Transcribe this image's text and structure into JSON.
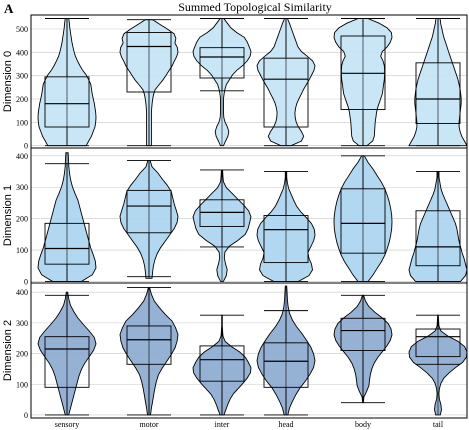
{
  "panel_label": "A",
  "chart_data": {
    "type": "violin",
    "title": "Summed Topological Similarity",
    "categories": [
      "sensory",
      "motor",
      "inter",
      "head",
      "body",
      "tail"
    ],
    "grid": true,
    "panels": [
      {
        "ylabel": "Dimension 0",
        "ylim": [
          -10,
          560
        ],
        "yticks": [
          0,
          100,
          200,
          300,
          400,
          500
        ],
        "color": "#c3e3f6",
        "stats": [
          {
            "min": 0,
            "q1": 80,
            "median": 180,
            "q3": 295,
            "max": 545,
            "whisker_low": 0,
            "whisker_high": 545
          },
          {
            "min": 0,
            "q1": 230,
            "median": 425,
            "q3": 485,
            "max": 540,
            "whisker_low": 0,
            "whisker_high": 540
          },
          {
            "min": 0,
            "q1": 290,
            "median": 380,
            "q3": 420,
            "max": 545,
            "whisker_low": 235,
            "whisker_high": 545
          },
          {
            "min": 0,
            "q1": 80,
            "median": 285,
            "q3": 375,
            "max": 545,
            "whisker_low": 0,
            "whisker_high": 545
          },
          {
            "min": 0,
            "q1": 155,
            "median": 310,
            "q3": 470,
            "max": 545,
            "whisker_low": 0,
            "whisker_high": 545
          },
          {
            "min": 0,
            "q1": 95,
            "median": 200,
            "q3": 355,
            "max": 545,
            "whisker_low": 0,
            "whisker_high": 545
          }
        ],
        "density": [
          [
            0.55,
            0.62,
            0.7,
            0.75,
            0.8,
            0.82,
            0.83,
            0.82,
            0.8,
            0.78,
            0.75,
            0.72,
            0.7,
            0.68,
            0.62,
            0.55,
            0.45,
            0.37,
            0.3,
            0.24,
            0.2,
            0.17,
            0.14,
            0.12,
            0.1,
            0.08,
            0.07,
            0.05
          ],
          [
            0.08,
            0.08,
            0.08,
            0.08,
            0.08,
            0.08,
            0.08,
            0.08,
            0.09,
            0.1,
            0.12,
            0.15,
            0.2,
            0.32,
            0.45,
            0.55,
            0.65,
            0.75,
            0.82,
            0.9,
            0.95,
            0.93,
            0.85,
            0.88,
            0.82,
            0.6,
            0.35,
            0.12
          ],
          [
            0.05,
            0.12,
            0.2,
            0.23,
            0.18,
            0.1,
            0.06,
            0.05,
            0.05,
            0.05,
            0.05,
            0.07,
            0.1,
            0.15,
            0.25,
            0.35,
            0.5,
            0.7,
            0.85,
            0.95,
            0.98,
            0.92,
            0.85,
            0.75,
            0.5,
            0.3,
            0.18,
            0.06
          ],
          [
            0.15,
            0.45,
            0.52,
            0.45,
            0.36,
            0.3,
            0.27,
            0.26,
            0.28,
            0.32,
            0.38,
            0.45,
            0.52,
            0.6,
            0.68,
            0.75,
            0.82,
            0.85,
            0.78,
            0.62,
            0.45,
            0.35,
            0.3,
            0.25,
            0.2,
            0.15,
            0.1,
            0.04
          ],
          [
            0.12,
            0.3,
            0.35,
            0.36,
            0.37,
            0.38,
            0.4,
            0.42,
            0.45,
            0.5,
            0.55,
            0.6,
            0.62,
            0.64,
            0.66,
            0.67,
            0.67,
            0.66,
            0.62,
            0.55,
            0.6,
            0.75,
            0.85,
            0.9,
            0.88,
            0.75,
            0.5,
            0.15
          ],
          [
            0.55,
            0.5,
            0.45,
            0.42,
            0.4,
            0.4,
            0.41,
            0.42,
            0.43,
            0.44,
            0.44,
            0.43,
            0.42,
            0.4,
            0.38,
            0.35,
            0.32,
            0.29,
            0.26,
            0.23,
            0.2,
            0.17,
            0.14,
            0.11,
            0.09,
            0.07,
            0.05,
            0.04
          ]
        ]
      },
      {
        "ylabel": "Dimension 1",
        "ylim": [
          -5,
          425
        ],
        "yticks": [
          0,
          100,
          200,
          300,
          400
        ],
        "color": "#a9d3f0",
        "stats": [
          {
            "min": 0,
            "q1": 55,
            "median": 105,
            "q3": 185,
            "max": 410,
            "whisker_low": 0,
            "whisker_high": 375
          },
          {
            "min": 10,
            "q1": 155,
            "median": 240,
            "q3": 290,
            "max": 385,
            "whisker_low": 15,
            "whisker_high": 385
          },
          {
            "min": 0,
            "q1": 175,
            "median": 220,
            "q3": 260,
            "max": 355,
            "whisker_low": 110,
            "whisker_high": 355
          },
          {
            "min": 0,
            "q1": 60,
            "median": 165,
            "q3": 210,
            "max": 350,
            "whisker_low": 0,
            "whisker_high": 350
          },
          {
            "min": 0,
            "q1": 90,
            "median": 185,
            "q3": 295,
            "max": 400,
            "whisker_low": 0,
            "whisker_high": 400
          },
          {
            "min": 0,
            "q1": 50,
            "median": 110,
            "q3": 225,
            "max": 350,
            "whisker_low": 0,
            "whisker_high": 350
          }
        ],
        "density": [
          [
            0.4,
            0.7,
            0.8,
            0.78,
            0.72,
            0.65,
            0.6,
            0.55,
            0.5,
            0.45,
            0.4,
            0.35,
            0.3,
            0.22,
            0.15,
            0.1,
            0.07,
            0.05,
            0.04,
            0.03
          ],
          [
            0.1,
            0.12,
            0.15,
            0.2,
            0.28,
            0.4,
            0.55,
            0.7,
            0.85,
            0.95,
            0.98,
            0.92,
            0.85,
            0.8,
            0.75,
            0.62,
            0.45,
            0.3,
            0.1,
            0.04
          ],
          [
            0.05,
            0.15,
            0.18,
            0.12,
            0.08,
            0.1,
            0.25,
            0.55,
            0.8,
            0.9,
            0.95,
            1.0,
            0.92,
            0.75,
            0.55,
            0.35,
            0.15,
            0.05,
            0.03,
            0.02
          ],
          [
            0.35,
            0.65,
            0.75,
            0.72,
            0.65,
            0.62,
            0.7,
            0.78,
            0.82,
            0.8,
            0.72,
            0.58,
            0.42,
            0.3,
            0.22,
            0.15,
            0.08,
            0.04,
            0.02,
            0.02
          ],
          [
            0.15,
            0.3,
            0.42,
            0.55,
            0.65,
            0.72,
            0.78,
            0.82,
            0.85,
            0.86,
            0.85,
            0.82,
            0.78,
            0.72,
            0.65,
            0.55,
            0.42,
            0.3,
            0.15,
            0.04
          ],
          [
            0.45,
            0.55,
            0.58,
            0.55,
            0.52,
            0.48,
            0.45,
            0.42,
            0.4,
            0.38,
            0.35,
            0.3,
            0.25,
            0.2,
            0.15,
            0.1,
            0.06,
            0.04,
            0.02,
            0.02
          ]
        ]
      },
      {
        "ylabel": "Dimension 2",
        "ylim": [
          -10,
          430
        ],
        "yticks": [
          0,
          100,
          200,
          300,
          400
        ],
        "color": "#8aa9cf",
        "stats": [
          {
            "min": 0,
            "q1": 90,
            "median": 215,
            "q3": 255,
            "max": 400,
            "whisker_low": 0,
            "whisker_high": 390
          },
          {
            "min": 0,
            "q1": 165,
            "median": 245,
            "q3": 290,
            "max": 415,
            "whisker_low": 0,
            "whisker_high": 415
          },
          {
            "min": 0,
            "q1": 110,
            "median": 180,
            "q3": 225,
            "max": 325,
            "whisker_low": 0,
            "whisker_high": 325
          },
          {
            "min": 0,
            "q1": 90,
            "median": 175,
            "q3": 235,
            "max": 420,
            "whisker_low": 0,
            "whisker_high": 340
          },
          {
            "min": 40,
            "q1": 210,
            "median": 275,
            "q3": 315,
            "max": 390,
            "whisker_low": 40,
            "whisker_high": 390
          },
          {
            "min": 0,
            "q1": 190,
            "median": 255,
            "q3": 280,
            "max": 325,
            "whisker_low": 165,
            "whisker_high": 325
          }
        ],
        "density": [
          [
            0.05,
            0.1,
            0.15,
            0.2,
            0.25,
            0.3,
            0.35,
            0.42,
            0.52,
            0.65,
            0.78,
            0.85,
            0.8,
            0.65,
            0.48,
            0.32,
            0.2,
            0.1,
            0.05,
            0.02
          ],
          [
            0.05,
            0.08,
            0.12,
            0.16,
            0.2,
            0.25,
            0.32,
            0.45,
            0.6,
            0.75,
            0.88,
            0.95,
            0.98,
            0.9,
            0.78,
            0.55,
            0.35,
            0.18,
            0.08,
            0.02
          ],
          [
            0.06,
            0.12,
            0.18,
            0.25,
            0.35,
            0.5,
            0.65,
            0.78,
            0.88,
            0.9,
            0.82,
            0.72,
            0.55,
            0.3,
            0.1,
            0.03,
            0.02,
            0.01,
            0.01,
            0.01
          ],
          [
            0.05,
            0.1,
            0.18,
            0.28,
            0.4,
            0.55,
            0.68,
            0.78,
            0.82,
            0.78,
            0.7,
            0.58,
            0.45,
            0.3,
            0.18,
            0.1,
            0.06,
            0.04,
            0.03,
            0.02
          ],
          [
            0.01,
            0.03,
            0.12,
            0.2,
            0.22,
            0.25,
            0.3,
            0.38,
            0.5,
            0.65,
            0.8,
            0.92,
            0.98,
            0.95,
            0.85,
            0.65,
            0.4,
            0.2,
            0.08,
            0.02
          ],
          [
            0.08,
            0.12,
            0.1,
            0.05,
            0.03,
            0.05,
            0.1,
            0.2,
            0.38,
            0.6,
            0.85,
            0.98,
            1.0,
            0.92,
            0.7,
            0.35,
            0.1,
            0.03,
            0.02,
            0.01
          ]
        ]
      }
    ]
  }
}
